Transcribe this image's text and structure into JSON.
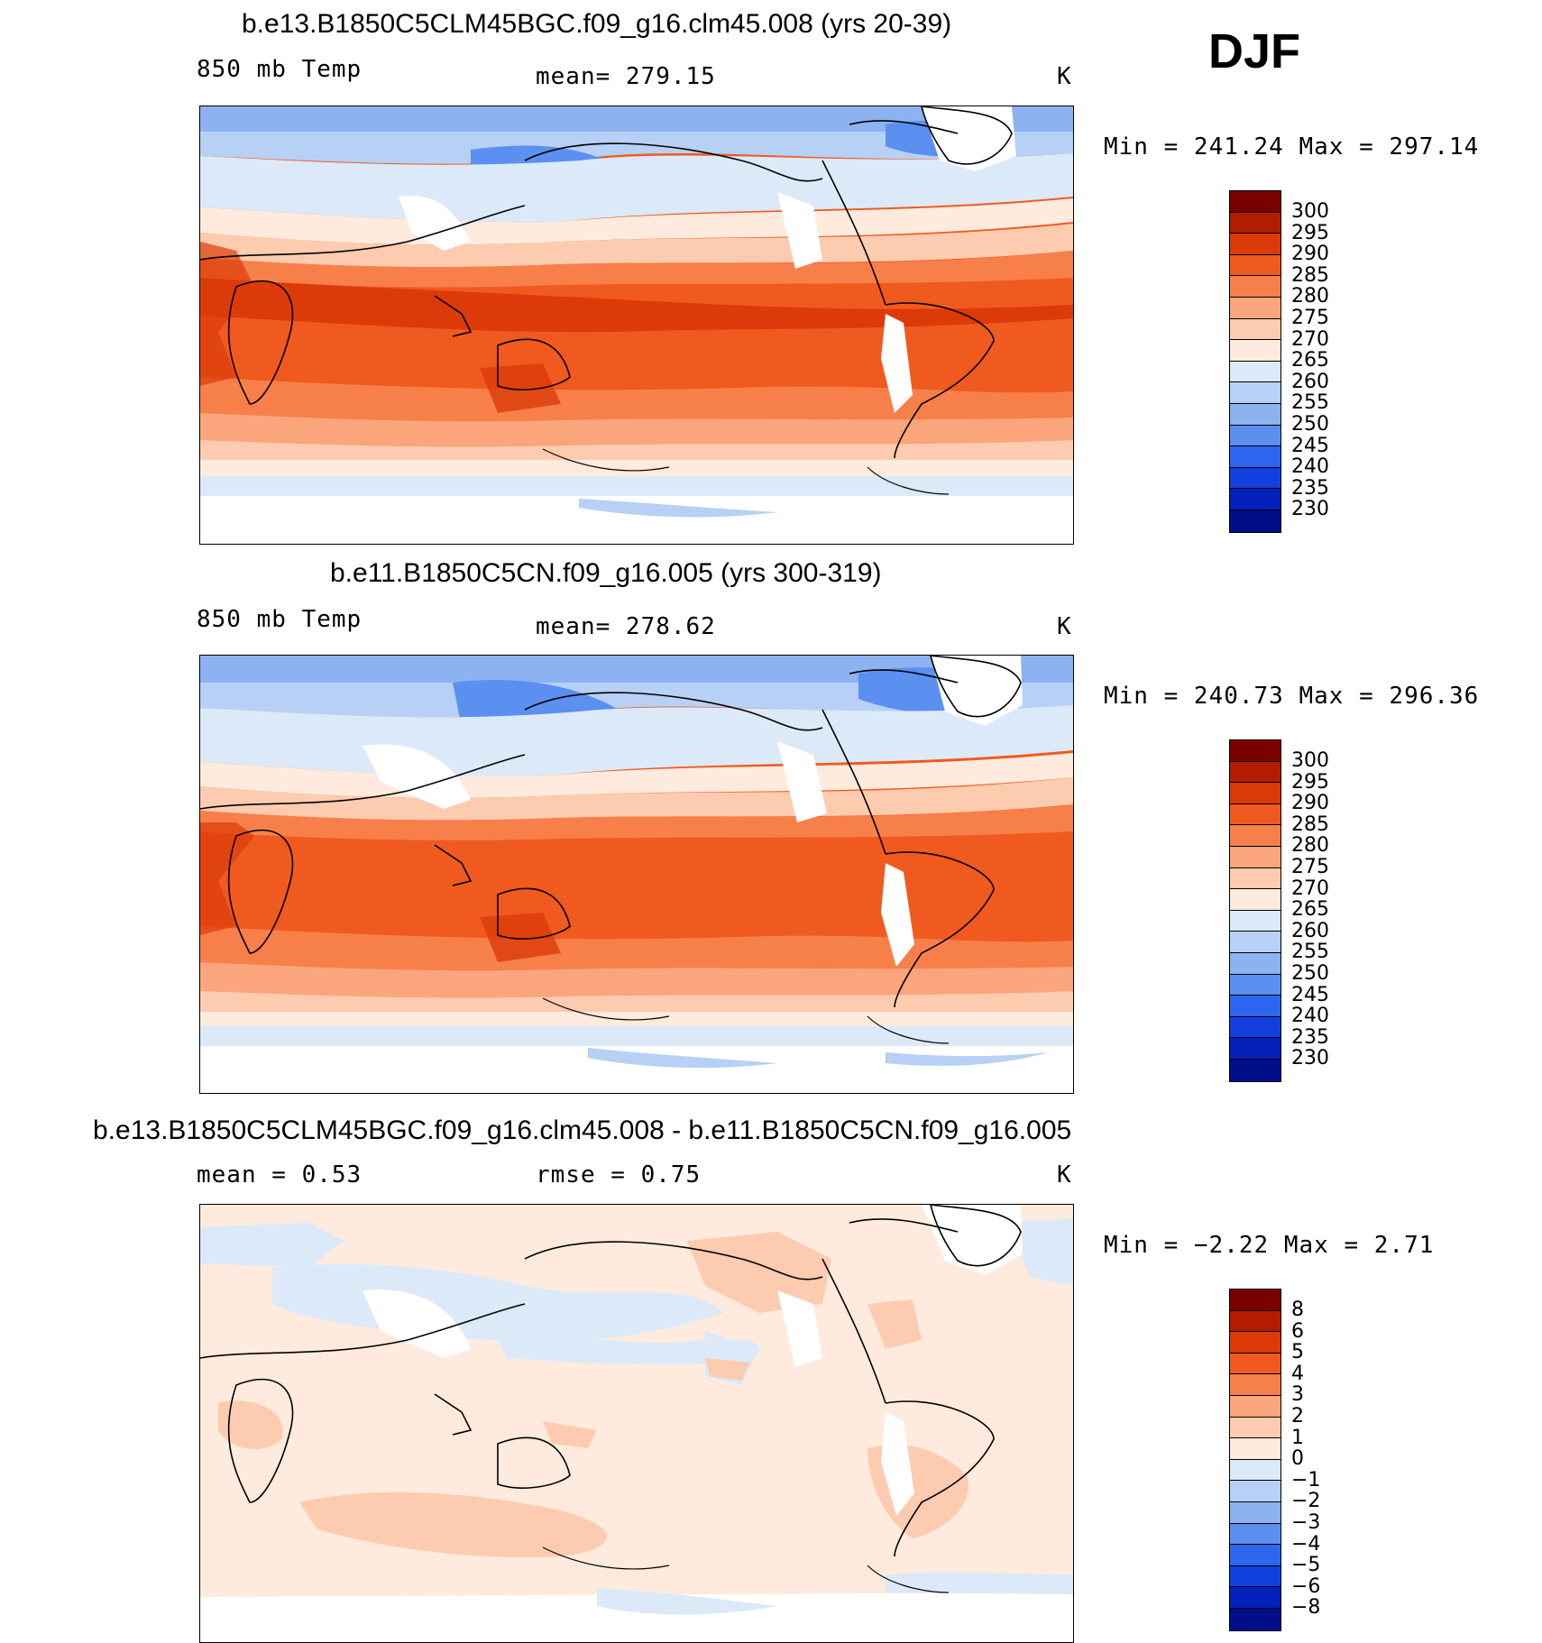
{
  "season": "DJF",
  "panels": [
    {
      "title": "b.e13.B1850C5CLM45BGC.f09_g16.clm45.008 (yrs 20-39)",
      "left_label": "850 mb Temp",
      "center_label": "mean= 279.15",
      "units": "K",
      "minmax": "Min = 241.24 Max = 297.14",
      "colorbar_labels": [
        "300",
        "295",
        "290",
        "285",
        "280",
        "275",
        "270",
        "265",
        "260",
        "255",
        "250",
        "245",
        "240",
        "235",
        "230"
      ]
    },
    {
      "title": "b.e11.B1850C5CN.f09_g16.005 (yrs 300-319)",
      "left_label": "850 mb Temp",
      "center_label": "mean= 278.62",
      "units": "K",
      "minmax": "Min = 240.73 Max = 296.36",
      "colorbar_labels": [
        "300",
        "295",
        "290",
        "285",
        "280",
        "275",
        "270",
        "265",
        "260",
        "255",
        "250",
        "245",
        "240",
        "235",
        "230"
      ]
    },
    {
      "title": "b.e13.B1850C5CLM45BGC.f09_g16.clm45.008 - b.e11.B1850C5CN.f09_g16.005",
      "left_label": "mean =    0.53",
      "center_label": "rmse =    0.75",
      "units": "K",
      "minmax": "Min =   −2.22 Max =    2.71",
      "colorbar_labels": [
        "8",
        "6",
        "5",
        "4",
        "3",
        "2",
        "1",
        "0",
        "−1",
        "−2",
        "−3",
        "−4",
        "−5",
        "−6",
        "−8"
      ]
    }
  ],
  "colors": {
    "abs_scale": [
      "#7a0000",
      "#b41c00",
      "#dc3a08",
      "#f05a1e",
      "#f7804a",
      "#fba57c",
      "#fdcbb0",
      "#feebdd",
      "#dbe9f9",
      "#b7d0f5",
      "#8db2f2",
      "#5b8ff0",
      "#2f66ef",
      "#1240df",
      "#0420bb",
      "#000e8a"
    ],
    "diff_scale": [
      "#7a0000",
      "#b41c00",
      "#dc3a08",
      "#f05a1e",
      "#f7804a",
      "#fba57c",
      "#fdcbb0",
      "#feebdd",
      "#dbe9f9",
      "#b7d0f5",
      "#8db2f2",
      "#5b8ff0",
      "#2f66ef",
      "#1240df",
      "#0420bb",
      "#000e8a"
    ],
    "missing": "#ffffff",
    "coastline": "#000000"
  }
}
